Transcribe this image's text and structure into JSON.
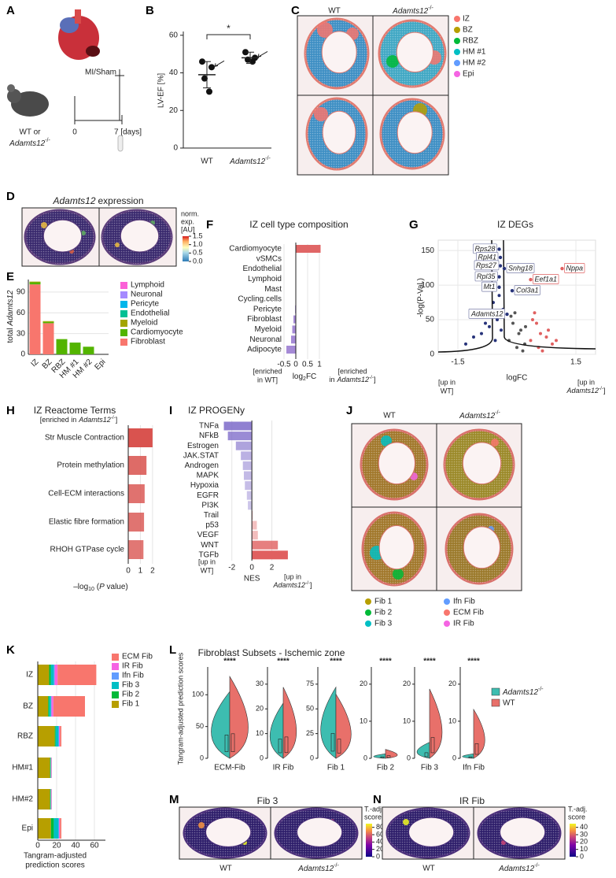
{
  "genotype": {
    "wt": "WT",
    "gene": "Adamts12",
    "sup": "-/-"
  },
  "A": {
    "label": "A",
    "surgery": "MI/Sham",
    "mouse": "WT or",
    "t0": "0",
    "t1": "7 [days]"
  },
  "B": {
    "label": "B",
    "type": "dot",
    "y_label": "LV-EF [%]",
    "ylim": [
      0,
      62
    ],
    "yticks": [
      0,
      20,
      40,
      60
    ],
    "groups": [
      {
        "values": [
          46,
          43,
          37,
          30
        ],
        "mean": 39,
        "sd": 7
      },
      {
        "values": [
          51,
          48,
          47,
          46
        ],
        "mean": 48,
        "sd": 3
      }
    ],
    "significance": "*"
  },
  "C": {
    "label": "C",
    "legend": [
      {
        "name": "IZ",
        "color": "#F8766D"
      },
      {
        "name": "BZ",
        "color": "#B79F00"
      },
      {
        "name": "RBZ",
        "color": "#00BA38"
      },
      {
        "name": "HM #1",
        "color": "#00BFC4"
      },
      {
        "name": "HM #2",
        "color": "#619CFF"
      },
      {
        "name": "Epi",
        "color": "#F564E3"
      }
    ]
  },
  "D": {
    "label": "D",
    "title": "expression",
    "colorbar_title": [
      "norm.",
      "exp.",
      "[AU]"
    ],
    "clim": [
      0,
      1.5
    ],
    "cticks": [
      {
        "value": 0,
        "label": "0.0"
      },
      {
        "value": 0.5,
        "label": "0.5"
      },
      {
        "value": 1,
        "label": "1.0"
      },
      {
        "value": 1.5,
        "label": "1.5"
      }
    ]
  },
  "E": {
    "label": "E",
    "type": "stacked_bar",
    "y_label": "total",
    "ylim": [
      0,
      108
    ],
    "yticks": [
      0,
      30,
      60,
      90
    ],
    "categories": [
      "IZ",
      "BZ",
      "RBZ",
      "HM #1",
      "HM #2",
      "Epi"
    ],
    "series": [
      {
        "name": "Fibroblast",
        "color": "#F8766D",
        "values": [
          101,
          45,
          0,
          0,
          0,
          0
        ]
      },
      {
        "name": "Cardiomyocyte",
        "color": "#53B400",
        "values": [
          3,
          2,
          22,
          17,
          11,
          0
        ]
      },
      {
        "name": "Myeloid",
        "color": "#A3A500",
        "values": [
          1,
          1,
          0,
          0,
          0,
          0
        ]
      },
      {
        "name": "Endothelial",
        "color": "#00C094",
        "values": [
          0,
          0,
          0,
          0,
          0,
          0
        ]
      },
      {
        "name": "Pericyte",
        "color": "#00B6EB",
        "values": [
          0,
          0,
          0,
          0,
          0,
          0
        ]
      },
      {
        "name": "Neuronal",
        "color": "#A58AFF",
        "values": [
          0,
          0,
          0,
          0,
          0,
          0
        ]
      },
      {
        "name": "Lymphoid",
        "color": "#FB61D7",
        "values": [
          0,
          0,
          0,
          0,
          0,
          0
        ]
      }
    ]
  },
  "F": {
    "label": "F",
    "type": "hbar",
    "title": "IZ cell type composition",
    "categories": [
      "Cardiomyocyte",
      "vSMCs",
      "Endothelial",
      "Lymphoid",
      "Mast",
      "Cycling.cells",
      "Pericyte",
      "Fibroblast",
      "Myeloid",
      "Neuronal",
      "Adipocyte"
    ],
    "values": [
      1.05,
      0,
      0,
      0,
      0,
      0,
      -0.03,
      -0.1,
      -0.15,
      -0.2,
      -0.4
    ],
    "xlim": [
      -0.7,
      1.1
    ],
    "xticks": [
      -0.5,
      0,
      0.5,
      1
    ],
    "pos_color": "#e06666",
    "neg_color": "#a58ad6",
    "x_label": "log",
    "x_label_sub": "2",
    "x_label_end": "FC",
    "left_note": [
      "[enriched",
      "in WT]"
    ],
    "right_note": [
      "[enriched",
      "in"
    ],
    "close": "]"
  },
  "G": {
    "label": "G",
    "type": "volcano",
    "title": "IZ DEGs",
    "y_label": "-log(P-Val.)",
    "x_label": "logFC",
    "xlim": [
      -2,
      2
    ],
    "xticks": [
      -1.5,
      1.5
    ],
    "ylim": [
      0,
      165
    ],
    "yticks": [
      0,
      50,
      100,
      150
    ],
    "points": {
      "x": [
        -0.2,
        -0.1,
        0,
        0.1,
        0.2,
        -0.15,
        0.05,
        0.15,
        -0.05,
        0.22,
        -0.35,
        -0.5,
        -0.7,
        -0.9,
        -1.1,
        -0.45,
        -0.6,
        -0.8,
        -0.4,
        -0.55,
        -1.3,
        -0.65,
        0.35,
        0.5,
        0.6,
        0.75,
        0.9,
        0.45,
        0.55,
        0.8,
        0.4,
        1.0,
        0.65
      ],
      "y": [
        20,
        45,
        10,
        35,
        15,
        55,
        30,
        5,
        60,
        40,
        65,
        50,
        40,
        30,
        25,
        85,
        75,
        45,
        35,
        20,
        15,
        60,
        20,
        45,
        30,
        25,
        15,
        60,
        10,
        35,
        50,
        20,
        5
      ]
    },
    "genes": [
      {
        "name": "Rps28",
        "x": -0.45,
        "y": 152
      },
      {
        "name": "Rpl41",
        "x": -0.42,
        "y": 140
      },
      {
        "name": "Rps27",
        "x": -0.42,
        "y": 128
      },
      {
        "name": "Snhg18",
        "x": -0.32,
        "y": 124
      },
      {
        "name": "Rpl35",
        "x": -0.45,
        "y": 112
      },
      {
        "name": "Mt1",
        "x": -0.45,
        "y": 97
      },
      {
        "name": "Col3a1",
        "x": -0.12,
        "y": 92
      },
      {
        "name": "Eef1a1",
        "x": 0.35,
        "y": 108
      },
      {
        "name": "Nppa",
        "x": 1.15,
        "y": 124
      },
      {
        "name": "Adamts12",
        "x": -0.25,
        "y": 58
      }
    ],
    "left_note": [
      "[up in",
      "WT]"
    ],
    "right_note": [
      "[up in"
    ],
    "close": "]"
  },
  "H": {
    "label": "H",
    "type": "hbar",
    "title": "IZ Reactome Terms",
    "subtitle": "[enriched in",
    "close": "]",
    "categories": [
      "Str Muscle Contraction",
      "Protein methylation",
      "Cell-ECM interactions",
      "Elastic fibre formation",
      "RHOH GTPase cycle"
    ],
    "values": [
      2.0,
      1.5,
      1.35,
      1.3,
      1.25
    ],
    "xlim": [
      0,
      2.2
    ],
    "xticks": [
      0,
      1,
      2
    ],
    "color": "#d9534f",
    "x_label": {
      "a": "–log",
      "b": "10",
      "c": " (",
      "d": "P",
      "e": " value)"
    }
  },
  "I": {
    "label": "I",
    "type": "hbar",
    "title": "IZ PROGENy",
    "categories": [
      "TNFa",
      "NFkB",
      "Estrogen",
      "JAK.STAT",
      "Androgen",
      "MAPK",
      "Hypoxia",
      "EGFR",
      "PI3K",
      "Trail",
      "p53",
      "VEGF",
      "WNT",
      "TGFb"
    ],
    "values": [
      -2.8,
      -2.4,
      -1.6,
      -1.1,
      -0.9,
      -0.8,
      -0.7,
      -0.5,
      -0.4,
      0.1,
      0.5,
      0.6,
      2.6,
      3.6
    ],
    "xlim": [
      -3,
      4
    ],
    "xticks": [
      -2,
      0,
      2
    ],
    "pos_color": "#e06060",
    "neg_color": "#7b68c8",
    "x_label": "NES",
    "left_note": [
      "[up in",
      "WT]"
    ],
    "right_note": [
      "[up in"
    ],
    "close": "]"
  },
  "J": {
    "label": "J",
    "legend": [
      {
        "name": "Fib 1",
        "color": "#B79F00"
      },
      {
        "name": "Fib 2",
        "color": "#00BA38"
      },
      {
        "name": "Fib 3",
        "color": "#00BFC4"
      },
      {
        "name": "Ifn Fib",
        "color": "#619CFF"
      },
      {
        "name": "ECM Fib",
        "color": "#F8766D"
      },
      {
        "name": "IR Fib",
        "color": "#F564E3"
      }
    ]
  },
  "K": {
    "label": "K",
    "type": "stacked_hbar",
    "categories": [
      "IZ",
      "BZ",
      "RBZ",
      "HM#1",
      "HM#2",
      "Epi"
    ],
    "xlim": [
      0,
      70
    ],
    "xticks": [
      0,
      20,
      40,
      60
    ],
    "x_label": [
      "Tangram-adjusted",
      "prediction scores"
    ],
    "series": [
      {
        "name": "Fib 1",
        "color": "#B79F00",
        "values": [
          12,
          11,
          18,
          13,
          13,
          14
        ]
      },
      {
        "name": "Fib 2",
        "color": "#00BA38",
        "values": [
          2,
          1,
          1,
          0.5,
          0.5,
          3
        ]
      },
      {
        "name": "Fib 3",
        "color": "#00BFC4",
        "values": [
          3,
          2,
          3,
          0.5,
          0.5,
          5
        ]
      },
      {
        "name": "Ifn Fib",
        "color": "#619CFF",
        "values": [
          1,
          0.5,
          0.5,
          0.3,
          0.3,
          0.5
        ]
      },
      {
        "name": "IR Fib",
        "color": "#F564E3",
        "values": [
          3,
          2,
          1,
          0.5,
          0.5,
          1
        ]
      },
      {
        "name": "ECM Fib",
        "color": "#F8766D",
        "values": [
          41,
          33.5,
          1.5,
          0.2,
          0.2,
          1.5
        ]
      }
    ]
  },
  "L": {
    "label": "L",
    "type": "violin",
    "title": "Fibroblast Subsets - Ischemic zone",
    "y_label": "Tangram-adjusted prediction scores",
    "colors": [
      "#3dbdb0",
      "#e8706a"
    ],
    "panels": [
      {
        "name": "ECM-Fib",
        "significance": "****",
        "ylim": [
          0,
          140
        ],
        "yticks": [
          0,
          50,
          100
        ]
      },
      {
        "name": "IR Fib",
        "significance": "****",
        "ylim": [
          0,
          36
        ],
        "yticks": [
          0,
          10,
          20,
          30
        ]
      },
      {
        "name": "Fib 1",
        "significance": "****",
        "ylim": [
          0,
          90
        ],
        "yticks": [
          0,
          25,
          50,
          75
        ]
      },
      {
        "name": "Fib 2",
        "significance": "****",
        "ylim": [
          0,
          24
        ],
        "yticks": [
          0,
          10,
          20
        ]
      },
      {
        "name": "Fib 3",
        "significance": "****",
        "ylim": [
          0,
          24
        ],
        "yticks": [
          0,
          10,
          20
        ]
      },
      {
        "name": "Ifn Fib",
        "significance": "****",
        "ylim": [
          0,
          24
        ],
        "yticks": [
          0,
          10,
          20
        ]
      }
    ]
  },
  "M": {
    "label": "M",
    "title": "Fib 3",
    "colorbar_title": [
      "T.-adj.",
      "score"
    ],
    "clim": [
      0,
      90
    ],
    "cticks": [
      0,
      20,
      40,
      60,
      80
    ]
  },
  "N": {
    "label": "N",
    "title": "IR Fib",
    "colorbar_title": [
      "T.-adj.",
      "score"
    ],
    "clim": [
      0,
      45
    ],
    "cticks": [
      0,
      10,
      20,
      30,
      40
    ]
  }
}
